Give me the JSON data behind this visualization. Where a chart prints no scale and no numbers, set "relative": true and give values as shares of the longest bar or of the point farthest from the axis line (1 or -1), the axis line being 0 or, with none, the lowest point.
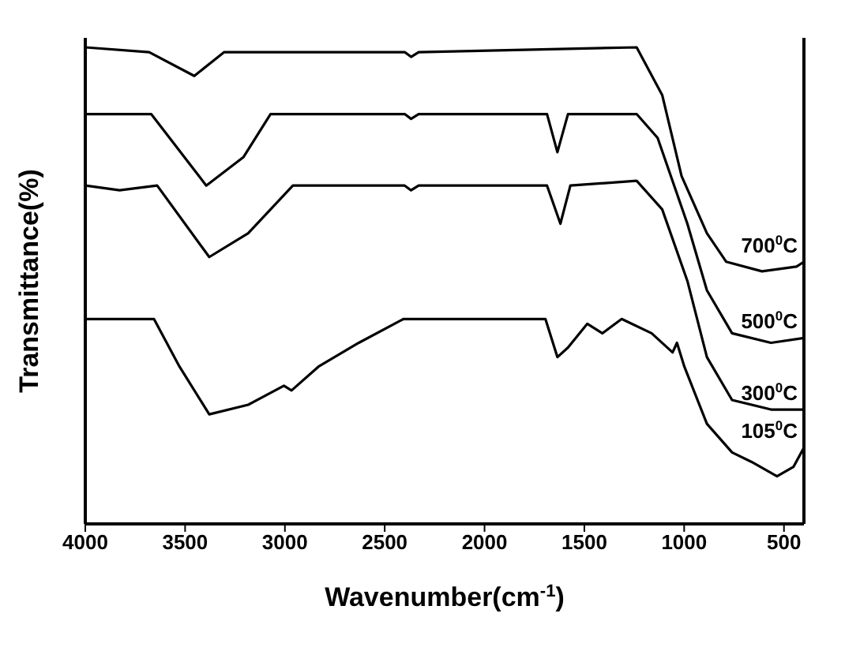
{
  "chart_data": {
    "type": "line",
    "relative": true,
    "xlabel": "Wavenumber(cm$^{-1}$)",
    "ylabel": "Transmittance(%)",
    "xlim": [
      4000,
      400
    ],
    "xticks": [
      4000,
      3500,
      3000,
      2500,
      2000,
      1500,
      1000,
      500
    ],
    "marker": "none",
    "line_style": "solid",
    "series": [
      {
        "name": "700$^{0}$C",
        "color": "#000000",
        "x": [
          4000,
          3680,
          3454,
          3304,
          2400,
          2368,
          2330,
          1238,
          1110,
          1013,
          886,
          789,
          610,
          437,
          400
        ],
        "values": [
          1.0,
          0.99,
          0.94,
          0.99,
          0.99,
          0.98,
          0.99,
          1.0,
          0.9,
          0.73,
          0.61,
          0.55,
          0.53,
          0.54,
          0.55
        ]
      },
      {
        "name": "500$^{0}$C",
        "color": "#000000",
        "x": [
          4000,
          3670,
          3394,
          3207,
          3072,
          2400,
          2368,
          2330,
          1687,
          1635,
          1582,
          1238,
          1133,
          984,
          886,
          760,
          565,
          400
        ],
        "values": [
          0.86,
          0.86,
          0.71,
          0.77,
          0.86,
          0.86,
          0.85,
          0.86,
          0.86,
          0.78,
          0.86,
          0.86,
          0.81,
          0.63,
          0.49,
          0.4,
          0.38,
          0.39
        ]
      },
      {
        "name": "300$^{0}$C",
        "color": "#000000",
        "x": [
          4000,
          3828,
          3640,
          3379,
          3184,
          2960,
          2400,
          2368,
          2330,
          1687,
          1620,
          1570,
          1238,
          1110,
          984,
          886,
          760,
          565,
          400
        ],
        "values": [
          0.71,
          0.7,
          0.71,
          0.56,
          0.61,
          0.71,
          0.71,
          0.7,
          0.71,
          0.71,
          0.63,
          0.71,
          0.72,
          0.66,
          0.51,
          0.35,
          0.26,
          0.24,
          0.24
        ]
      },
      {
        "name": "105$^{0}$C",
        "color": "#000000",
        "x": [
          4000,
          3656,
          3528,
          3379,
          3184,
          3005,
          2967,
          2832,
          2630,
          2406,
          2234,
          1695,
          1635,
          1582,
          1485,
          1410,
          1313,
          1163,
          1058,
          1036,
          999,
          886,
          760,
          662,
          535,
          452,
          400
        ],
        "values": [
          0.43,
          0.43,
          0.33,
          0.23,
          0.25,
          0.29,
          0.28,
          0.33,
          0.38,
          0.43,
          0.43,
          0.43,
          0.35,
          0.37,
          0.42,
          0.4,
          0.43,
          0.4,
          0.36,
          0.38,
          0.33,
          0.21,
          0.15,
          0.13,
          0.1,
          0.12,
          0.16
        ]
      }
    ]
  }
}
